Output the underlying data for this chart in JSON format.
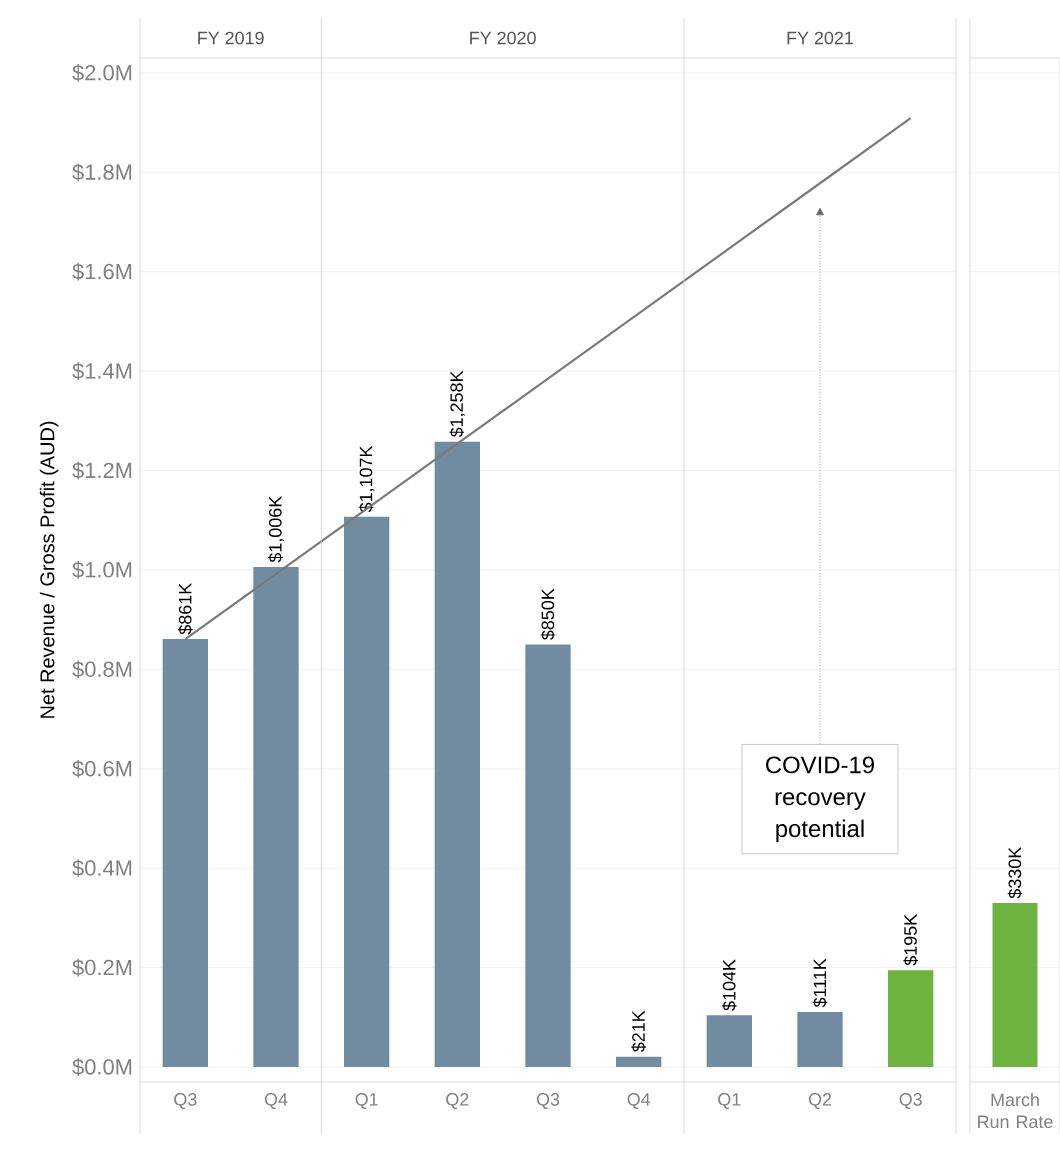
{
  "chart_data": [
    {
      "type": "bar",
      "ylabel": "Net Revenue / Gross Profit (AUD)",
      "categories": [
        "Q3",
        "Q4",
        "Q1",
        "Q2",
        "Q3",
        "Q4",
        "Q1",
        "Q2",
        "Q3"
      ],
      "series": [
        {
          "values": [
            861000,
            1006000,
            1107000,
            1258000,
            850000,
            21000,
            104000,
            111000,
            195000
          ],
          "colors": [
            "#718ba0",
            "#718ba0",
            "#718ba0",
            "#718ba0",
            "#718ba0",
            "#718ba0",
            "#718ba0",
            "#718ba0",
            "#6db33f"
          ],
          "value_labels": [
            "$861K",
            "$1,006K",
            "$1,107K",
            "$1,258K",
            "$850K",
            "$21K",
            "$104K",
            "$111K",
            "$195K"
          ]
        },
        {
          "type": "line",
          "values": [
            861000,
            992000,
            1123000,
            1254000,
            1385000,
            1516000,
            1647000,
            1778000,
            1909000
          ],
          "color": "#7a7a7a"
        }
      ],
      "ylim": [
        -30000,
        2030000
      ],
      "yticks": [
        {
          "value": 0,
          "label": "$0.0M"
        },
        {
          "value": 200000,
          "label": "$0.2M"
        },
        {
          "value": 400000,
          "label": "$0.4M"
        },
        {
          "value": 600000,
          "label": "$0.6M"
        },
        {
          "value": 800000,
          "label": "$0.8M"
        },
        {
          "value": 1000000,
          "label": "$1.0M"
        },
        {
          "value": 1200000,
          "label": "$1.2M"
        },
        {
          "value": 1400000,
          "label": "$1.4M"
        },
        {
          "value": 1600000,
          "label": "$1.6M"
        },
        {
          "value": 1800000,
          "label": "$1.8M"
        },
        {
          "value": 2000000,
          "label": "$2.0M"
        }
      ],
      "grid": "y",
      "annotations": [
        "FY 2019",
        "FY 2020",
        "FY 2021",
        "COVID-19 recovery potential"
      ]
    },
    {
      "type": "bar",
      "categories": [
        "March Run Rate"
      ],
      "series": [
        {
          "values": [
            330000
          ],
          "colors": [
            "#6db33f"
          ],
          "value_labels": [
            "$330K"
          ]
        }
      ],
      "ylim": [
        -30000,
        2030000
      ],
      "yticks": [
        0,
        200000,
        400000,
        600000,
        800000,
        1000000,
        1200000,
        1400000,
        1600000,
        1800000,
        2000000
      ],
      "grid": "y",
      "tick_labels": "x"
    }
  ]
}
